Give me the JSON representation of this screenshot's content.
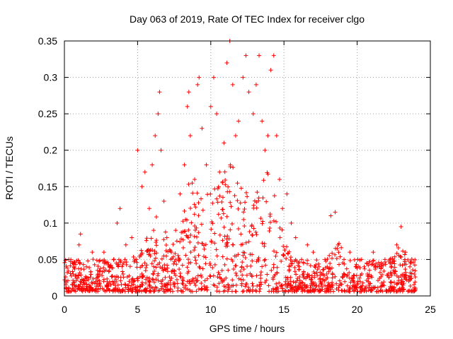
{
  "chart_data": {
    "type": "scatter",
    "title": "Day 063 of 2019, Rate Of TEC Index for receiver clgo",
    "xlabel": "GPS time / hours",
    "ylabel": "ROTI / TECUs",
    "xlim": [
      0,
      25
    ],
    "ylim": [
      0,
      0.35
    ],
    "x_ticks": [
      0,
      5,
      10,
      15,
      20,
      25
    ],
    "x_tick_labels": [
      "0",
      "5",
      "10",
      "15",
      "20",
      "25"
    ],
    "y_ticks": [
      0,
      0.05,
      0.1,
      0.15,
      0.2,
      0.25,
      0.3,
      0.35
    ],
    "y_tick_labels": [
      "0",
      "0.05",
      "0.1",
      "0.15",
      "0.2",
      "0.25",
      "0.3",
      "0.35"
    ],
    "grid": true,
    "marker": "plus",
    "color": "#ff0000",
    "series": [
      {
        "x": [
          0.1,
          0.3,
          0.6,
          1.0,
          1.1,
          1.5,
          1.9,
          2.3,
          2.7,
          3.1,
          3.6,
          3.8,
          4.2,
          4.6,
          4.9,
          5.0,
          5.3,
          5.5,
          5.8,
          6.0,
          6.2,
          6.4,
          6.5,
          6.6,
          6.8,
          7.0,
          7.3,
          7.6,
          7.9,
          8.2,
          8.4,
          8.5,
          8.6,
          8.9,
          9.1,
          9.2,
          9.4,
          9.7,
          10.0,
          10.2,
          10.4,
          10.6,
          10.9,
          11.1,
          11.3,
          11.5,
          11.7,
          11.9,
          12.2,
          12.4,
          12.6,
          12.9,
          13.1,
          13.3,
          13.5,
          13.7,
          13.9,
          14.1,
          14.3,
          14.5,
          14.7,
          14.9,
          15.2,
          15.5,
          15.8,
          16.2,
          16.6,
          17.0,
          17.4,
          17.8,
          18.2,
          18.5,
          18.7,
          19.1,
          19.5,
          19.9,
          20.3,
          20.7,
          21.1,
          21.5,
          21.9,
          22.3,
          22.7,
          23.0,
          23.3,
          23.6,
          23.9
        ],
        "y": [
          0.02,
          0.05,
          0.03,
          0.07,
          0.085,
          0.04,
          0.06,
          0.03,
          0.06,
          0.04,
          0.1,
          0.12,
          0.07,
          0.08,
          0.05,
          0.2,
          0.15,
          0.17,
          0.12,
          0.18,
          0.22,
          0.25,
          0.28,
          0.2,
          0.13,
          0.08,
          0.06,
          0.09,
          0.14,
          0.18,
          0.26,
          0.28,
          0.22,
          0.16,
          0.29,
          0.3,
          0.23,
          0.18,
          0.26,
          0.3,
          0.25,
          0.17,
          0.21,
          0.32,
          0.35,
          0.29,
          0.22,
          0.24,
          0.3,
          0.33,
          0.28,
          0.25,
          0.29,
          0.33,
          0.24,
          0.2,
          0.22,
          0.31,
          0.33,
          0.22,
          0.16,
          0.12,
          0.14,
          0.1,
          0.08,
          0.05,
          0.07,
          0.06,
          0.04,
          0.05,
          0.11,
          0.115,
          0.07,
          0.05,
          0.06,
          0.04,
          0.05,
          0.03,
          0.06,
          0.04,
          0.05,
          0.03,
          0.07,
          0.095,
          0.06,
          0.04,
          0.03
        ]
      }
    ]
  }
}
